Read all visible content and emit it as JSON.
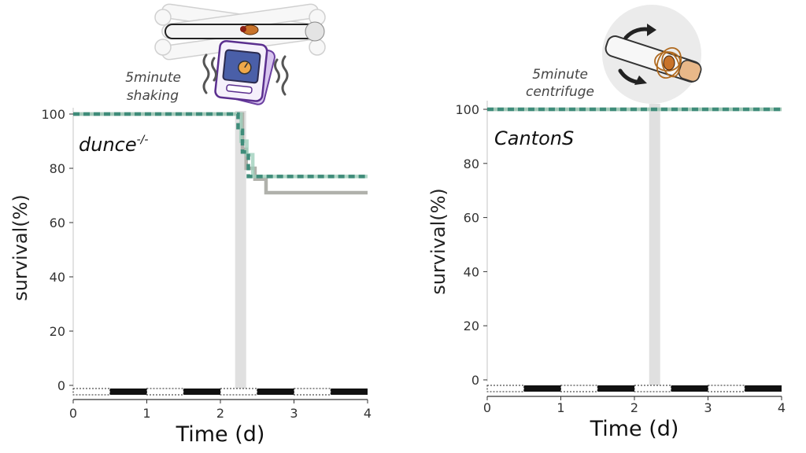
{
  "colors": {
    "teal_dash": "#3f8c7a",
    "teal_light": "#9fcfbc",
    "gray_line": "#b0b1ab",
    "treatment_band": "#e0e0e0",
    "axis": "#333333",
    "dark_bar": "#111111"
  },
  "icons": {
    "left": "fly-shaker-device-icon",
    "right": "centrifuge-tube-icon"
  },
  "chart_data": [
    {
      "type": "line",
      "genotype_label": "dunce",
      "genotype_superscript": "-/-",
      "treatment_label_line1": "5minute",
      "treatment_label_line2": "shaking",
      "xlabel": "Time (d)",
      "ylabel": "survival(%)",
      "xlim": [
        0,
        4
      ],
      "ylim": [
        0,
        100
      ],
      "xticks": [
        "0",
        "1",
        "2",
        "3",
        "4"
      ],
      "yticks": [
        "0",
        "20",
        "40",
        "60",
        "80",
        "100"
      ],
      "treatment_window": [
        2.2,
        2.35
      ],
      "light_dark_cycle": [
        {
          "start": 0,
          "end": 0.5,
          "phase": "light"
        },
        {
          "start": 0.5,
          "end": 1,
          "phase": "dark"
        },
        {
          "start": 1,
          "end": 1.5,
          "phase": "light"
        },
        {
          "start": 1.5,
          "end": 2,
          "phase": "dark"
        },
        {
          "start": 2,
          "end": 2.5,
          "phase": "light"
        },
        {
          "start": 2.5,
          "end": 3,
          "phase": "dark"
        },
        {
          "start": 3,
          "end": 3.5,
          "phase": "light"
        },
        {
          "start": 3.5,
          "end": 4,
          "phase": "dark"
        }
      ],
      "series": [
        {
          "style": "gray-solid",
          "x": [
            0,
            2.3,
            2.35,
            2.47,
            2.62,
            4
          ],
          "y": [
            100,
            87,
            80,
            76,
            71,
            71
          ]
        },
        {
          "style": "light-green-solid",
          "x": [
            0,
            2.28,
            2.36,
            2.44,
            4
          ],
          "y": [
            100,
            90,
            85,
            77,
            77
          ]
        },
        {
          "style": "teal-dashed",
          "x": [
            0,
            2.2,
            2.24,
            2.3,
            2.38,
            4
          ],
          "y": [
            100,
            100,
            94,
            86,
            77,
            77
          ]
        }
      ]
    },
    {
      "type": "line",
      "genotype_label": "CantonS",
      "treatment_label_line1": "5minute",
      "treatment_label_line2": "centrifuge",
      "xlabel": "Time (d)",
      "ylabel": "survival(%)",
      "xlim": [
        0,
        4
      ],
      "ylim": [
        0,
        100
      ],
      "xticks": [
        "0",
        "1",
        "2",
        "3",
        "4"
      ],
      "yticks": [
        "0",
        "20",
        "40",
        "60",
        "80",
        "100"
      ],
      "treatment_window": [
        2.2,
        2.35
      ],
      "light_dark_cycle": [
        {
          "start": 0,
          "end": 0.5,
          "phase": "light"
        },
        {
          "start": 0.5,
          "end": 1,
          "phase": "dark"
        },
        {
          "start": 1,
          "end": 1.5,
          "phase": "light"
        },
        {
          "start": 1.5,
          "end": 2,
          "phase": "dark"
        },
        {
          "start": 2,
          "end": 2.5,
          "phase": "light"
        },
        {
          "start": 2.5,
          "end": 3,
          "phase": "dark"
        },
        {
          "start": 3,
          "end": 3.5,
          "phase": "light"
        },
        {
          "start": 3.5,
          "end": 4,
          "phase": "dark"
        }
      ],
      "series": [
        {
          "style": "gray-solid",
          "x": [
            0,
            4
          ],
          "y": [
            100,
            100
          ]
        },
        {
          "style": "light-green-solid",
          "x": [
            0,
            4
          ],
          "y": [
            100,
            100
          ]
        },
        {
          "style": "teal-dashed",
          "x": [
            0,
            4
          ],
          "y": [
            100,
            100
          ]
        }
      ]
    }
  ]
}
